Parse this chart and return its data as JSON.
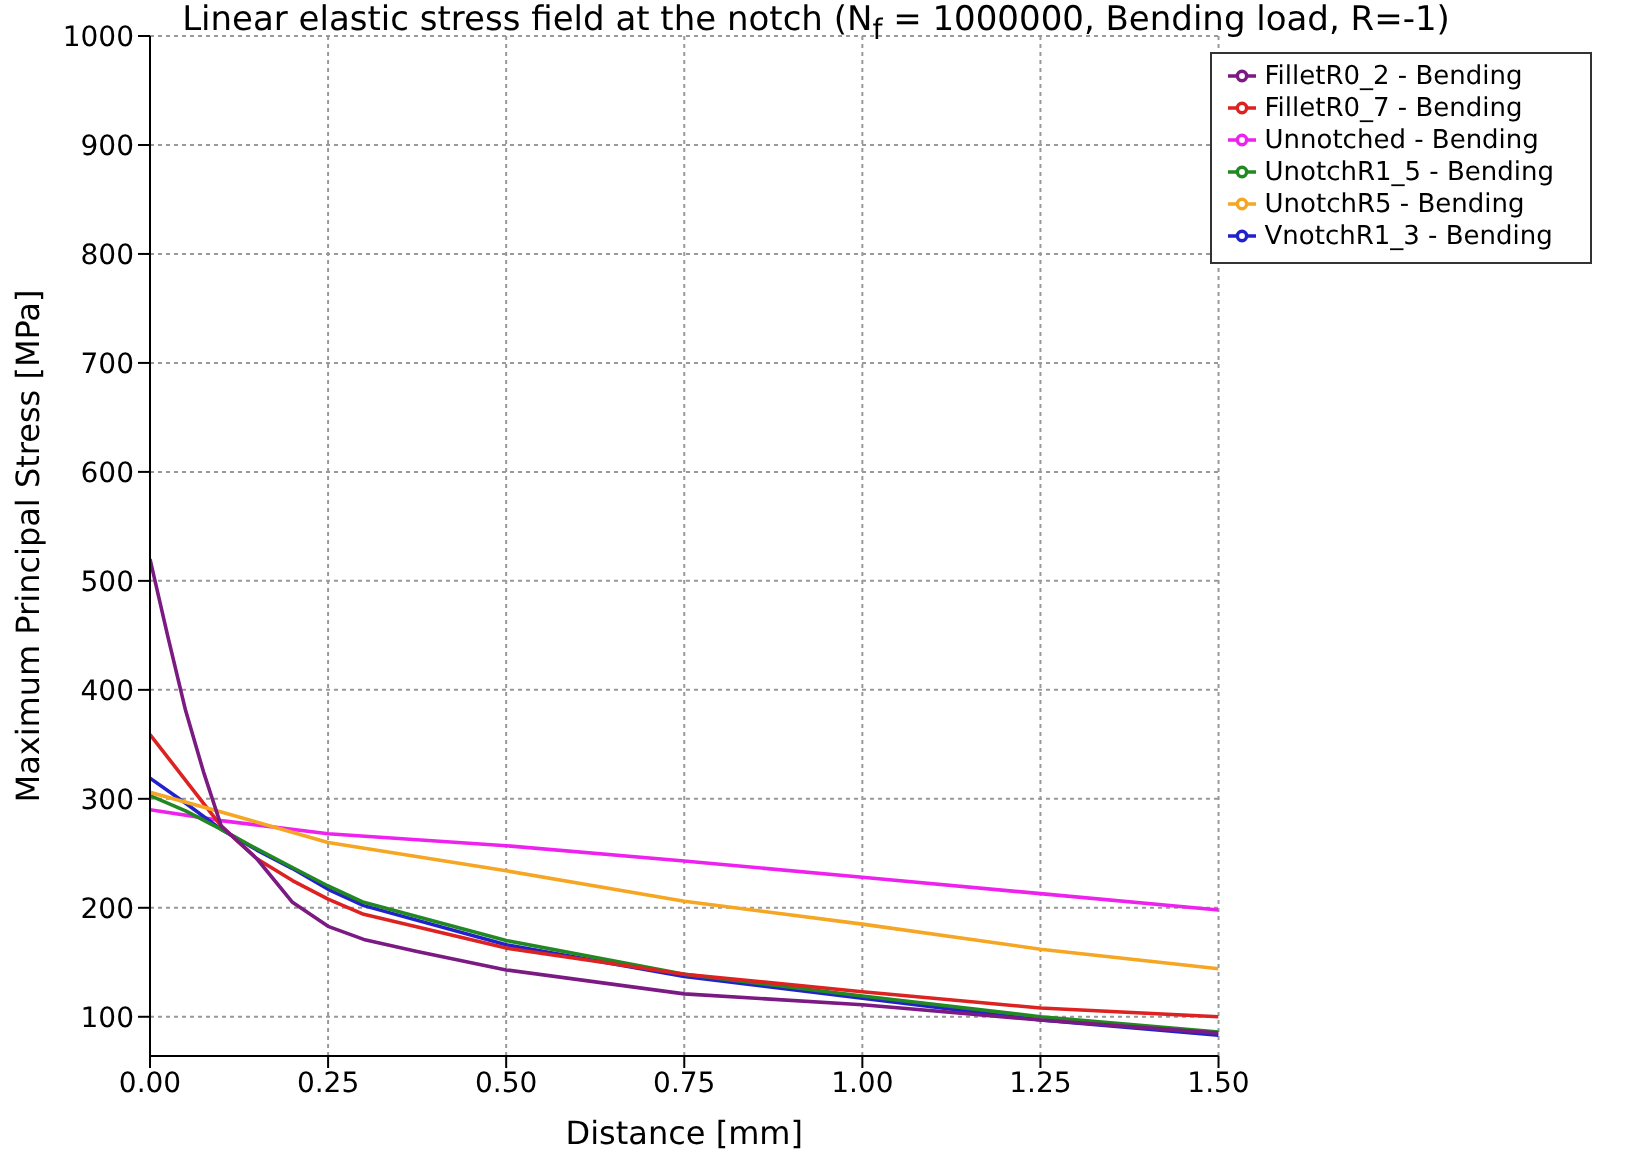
{
  "chart_data": {
    "type": "line",
    "title": "Linear elastic stress field at the notch (N$_{f}$ = 1000000, Bending load, R=-1)",
    "xlabel": "Distance [mm]",
    "ylabel": "Maximum Principal Stress [MPa]",
    "xlim": [
      0,
      1.5
    ],
    "xticks": [
      {
        "value": 0,
        "label": "0.00"
      },
      {
        "value": 0.25,
        "label": "0.25"
      },
      {
        "value": 0.5,
        "label": "0.50"
      },
      {
        "value": 0.75,
        "label": "0.75"
      },
      {
        "value": 1,
        "label": "1.00"
      },
      {
        "value": 1.25,
        "label": "1.25"
      },
      {
        "value": 1.5,
        "label": "1.50"
      }
    ],
    "ylim": [
      64,
      1000
    ],
    "yticks": [
      100,
      200,
      300,
      400,
      500,
      600,
      700,
      800,
      900,
      1000
    ],
    "grid": true,
    "legend": "top right",
    "line_style": "solid",
    "marker": "none",
    "series": [
      {
        "name": "Unnotched - Bending",
        "color": "#ee22ee",
        "x": [
          0,
          0.1,
          0.25,
          0.5,
          0.75,
          1,
          1.25,
          1.5
        ],
        "values": [
          290,
          280,
          268,
          257,
          243,
          228,
          213,
          198
        ]
      },
      {
        "name": "VnotchR1_3 - Bending",
        "color": "#2222cc",
        "x": [
          0,
          0.05,
          0.1,
          0.15,
          0.2,
          0.25,
          0.3,
          0.5,
          0.75,
          1,
          1.25,
          1.5
        ],
        "values": [
          319,
          296,
          272,
          253,
          236,
          217,
          202,
          166,
          137,
          117,
          97,
          83
        ]
      },
      {
        "name": "UnotchR1_5 - Bending",
        "color": "#228822",
        "x": [
          0,
          0.05,
          0.1,
          0.15,
          0.2,
          0.25,
          0.3,
          0.5,
          0.75,
          1,
          1.25,
          1.5
        ],
        "values": [
          303,
          289,
          272,
          254,
          237,
          220,
          205,
          170,
          139,
          119,
          100,
          86
        ]
      },
      {
        "name": "FilletR0_7 - Bending",
        "color": "#dd2222",
        "x": [
          0,
          0.05,
          0.1,
          0.15,
          0.2,
          0.25,
          0.3,
          0.5,
          0.75,
          1,
          1.25,
          1.5
        ],
        "values": [
          359,
          317,
          275,
          245,
          225,
          208,
          194,
          163,
          139,
          123,
          108,
          100
        ]
      },
      {
        "name": "UnotchR5 - Bending",
        "color": "#f5a623",
        "x": [
          0,
          0.1,
          0.25,
          0.5,
          0.75,
          1,
          1.25,
          1.5
        ],
        "values": [
          306,
          288,
          260,
          234,
          206,
          185,
          162,
          144
        ]
      },
      {
        "name": "FilletR0_2 - Bending",
        "color": "#7b1a82",
        "x": [
          0,
          0.025,
          0.05,
          0.075,
          0.1,
          0.15,
          0.2,
          0.25,
          0.3,
          0.375,
          0.5,
          0.75,
          1,
          1.25,
          1.5
        ],
        "values": [
          520,
          449,
          381,
          325,
          275,
          245,
          205,
          183,
          171,
          160,
          143,
          121,
          111,
          97,
          85
        ]
      }
    ]
  }
}
